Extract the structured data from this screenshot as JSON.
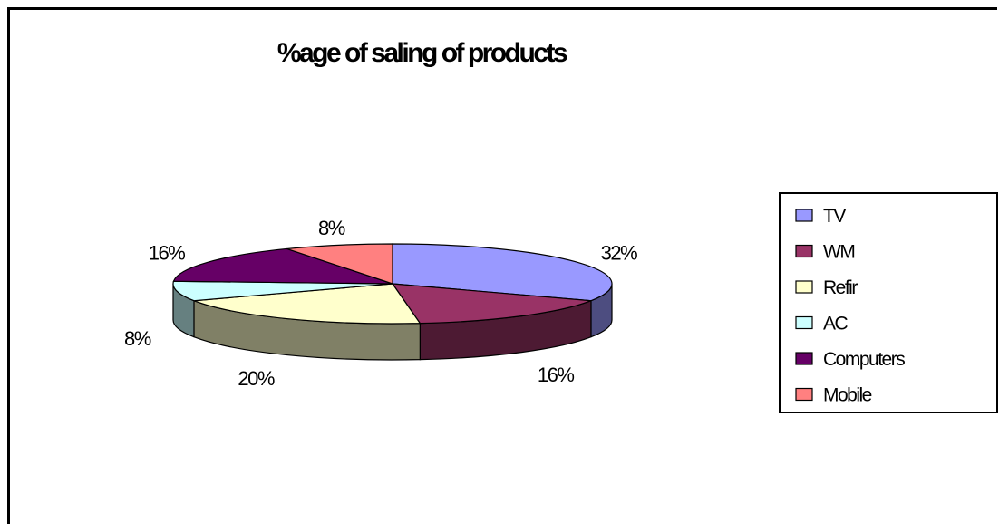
{
  "chart_data": {
    "type": "pie",
    "title": "%age of saling of products",
    "slices": [
      {
        "label": "TV",
        "value": 32,
        "data_label": "32%",
        "color": "#9999FF",
        "side_color": "#4D4D80"
      },
      {
        "label": "WM",
        "value": 16,
        "data_label": "16%",
        "color": "#993366",
        "side_color": "#4D1A33"
      },
      {
        "label": "Refir",
        "value": 20,
        "data_label": "20%",
        "color": "#FFFFCC",
        "side_color": "#808066"
      },
      {
        "label": "AC",
        "value": 8,
        "data_label": "8%",
        "color": "#CCFFFF",
        "side_color": "#668080"
      },
      {
        "label": "Computers",
        "value": 16,
        "data_label": "16%",
        "color": "#660066",
        "side_color": "#330033"
      },
      {
        "label": "Mobile",
        "value": 8,
        "data_label": "8%",
        "color": "#FF8080",
        "side_color": "#804040"
      }
    ],
    "legend_position": "right",
    "three_d": true
  }
}
